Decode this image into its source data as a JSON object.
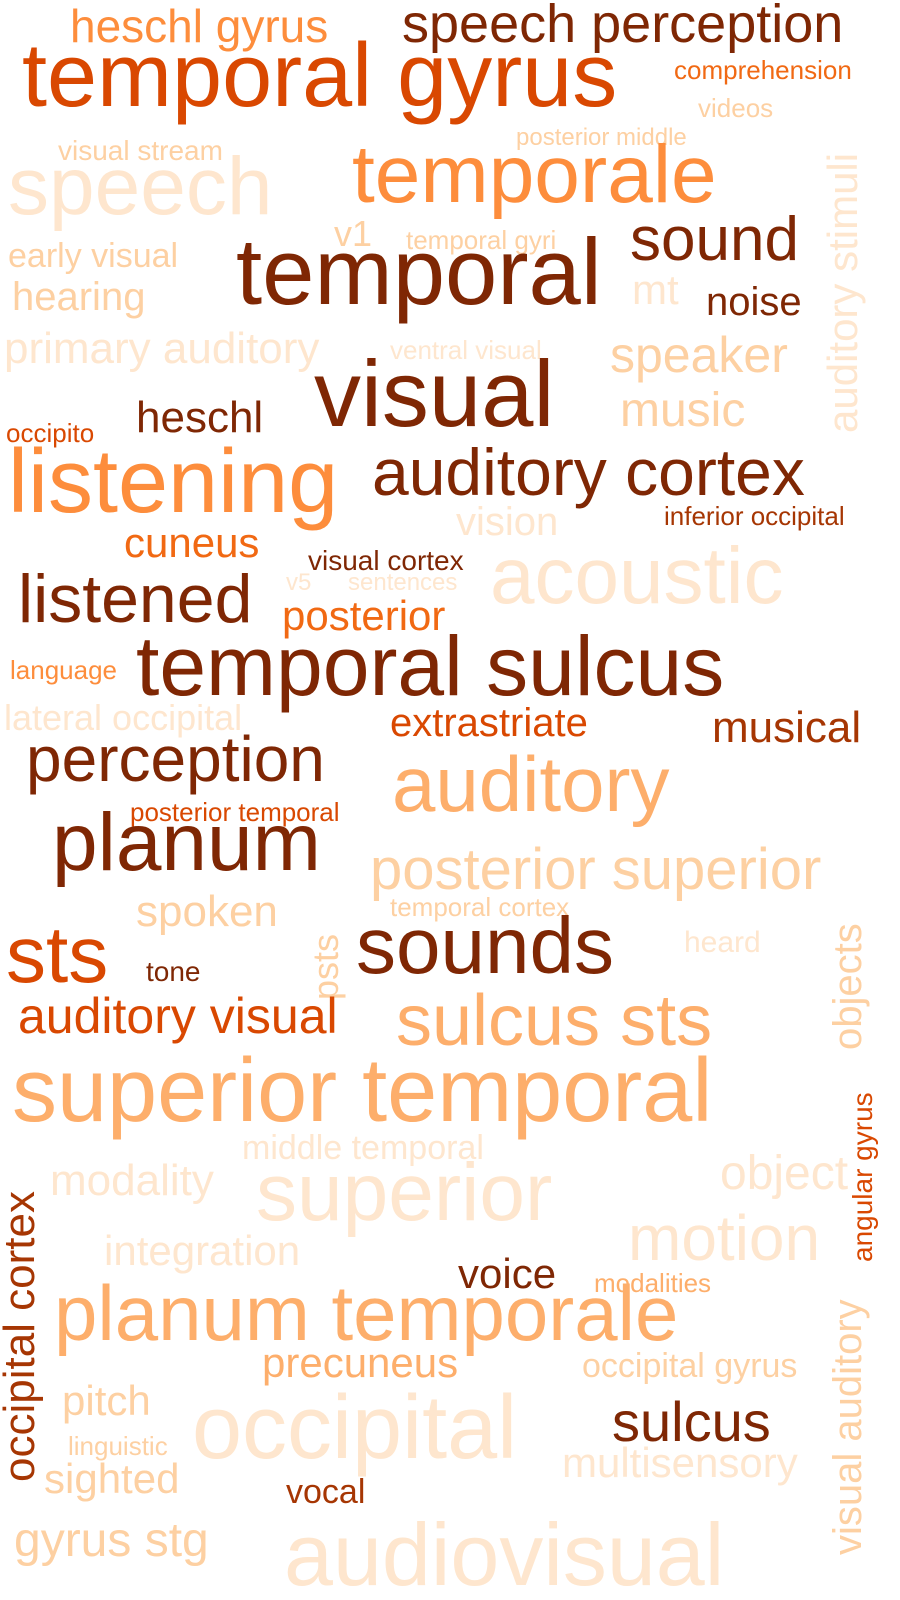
{
  "palette": {
    "dark": "#7f2704",
    "deep": "#a63603",
    "strong": "#d94801",
    "mid": "#f16913",
    "light": "#fd8d3c",
    "lighter": "#fdae6b",
    "pale": "#fdd0a2",
    "faint": "#fee6ce"
  },
  "words": [
    {
      "text": "heschl gyrus",
      "color": "light"
    },
    {
      "text": "speech perception",
      "color": "dark"
    },
    {
      "text": "temporal gyrus",
      "color": "strong"
    },
    {
      "text": "comprehension",
      "color": "mid"
    },
    {
      "text": "videos",
      "color": "pale"
    },
    {
      "text": "posterior middle",
      "color": "pale"
    },
    {
      "text": "visual stream",
      "color": "pale"
    },
    {
      "text": "speech",
      "color": "faint"
    },
    {
      "text": "temporale",
      "color": "light"
    },
    {
      "text": "v1",
      "color": "pale"
    },
    {
      "text": "temporal gyri",
      "color": "pale"
    },
    {
      "text": "sound",
      "color": "dark"
    },
    {
      "text": "early visual",
      "color": "pale"
    },
    {
      "text": "temporal",
      "color": "dark"
    },
    {
      "text": "hearing",
      "color": "pale"
    },
    {
      "text": "mt",
      "color": "faint"
    },
    {
      "text": "noise",
      "color": "dark"
    },
    {
      "text": "primary auditory",
      "color": "faint"
    },
    {
      "text": "ventral visual",
      "color": "faint"
    },
    {
      "text": "speaker",
      "color": "pale"
    },
    {
      "text": "auditory stimuli",
      "color": "faint"
    },
    {
      "text": "visual",
      "color": "dark"
    },
    {
      "text": "occipito",
      "color": "strong"
    },
    {
      "text": "heschl",
      "color": "dark"
    },
    {
      "text": "music",
      "color": "pale"
    },
    {
      "text": "listening",
      "color": "light"
    },
    {
      "text": "auditory cortex",
      "color": "dark"
    },
    {
      "text": "vision",
      "color": "faint"
    },
    {
      "text": "inferior occipital",
      "color": "deep"
    },
    {
      "text": "cuneus",
      "color": "mid"
    },
    {
      "text": "visual cortex",
      "color": "dark"
    },
    {
      "text": "acoustic",
      "color": "faint"
    },
    {
      "text": "v5",
      "color": "faint"
    },
    {
      "text": "sentences",
      "color": "faint"
    },
    {
      "text": "listened",
      "color": "dark"
    },
    {
      "text": "posterior",
      "color": "mid"
    },
    {
      "text": "language",
      "color": "light"
    },
    {
      "text": "temporal sulcus",
      "color": "dark"
    },
    {
      "text": "lateral occipital",
      "color": "faint"
    },
    {
      "text": "extrastriate",
      "color": "strong"
    },
    {
      "text": "musical",
      "color": "deep"
    },
    {
      "text": "perception",
      "color": "dark"
    },
    {
      "text": "auditory",
      "color": "lighter"
    },
    {
      "text": "posterior temporal",
      "color": "strong"
    },
    {
      "text": "planum",
      "color": "dark"
    },
    {
      "text": "posterior superior",
      "color": "pale"
    },
    {
      "text": "spoken",
      "color": "pale"
    },
    {
      "text": "temporal cortex",
      "color": "pale"
    },
    {
      "text": "psts",
      "color": "pale"
    },
    {
      "text": "heard",
      "color": "faint"
    },
    {
      "text": "objects",
      "color": "pale"
    },
    {
      "text": "sts",
      "color": "strong"
    },
    {
      "text": "tone",
      "color": "dark"
    },
    {
      "text": "sounds",
      "color": "dark"
    },
    {
      "text": "auditory visual",
      "color": "strong"
    },
    {
      "text": "sulcus sts",
      "color": "lighter"
    },
    {
      "text": "superior temporal",
      "color": "lighter"
    },
    {
      "text": "angular gyrus",
      "color": "strong"
    },
    {
      "text": "middle temporal",
      "color": "faint"
    },
    {
      "text": "modality",
      "color": "faint"
    },
    {
      "text": "superior",
      "color": "faint"
    },
    {
      "text": "object",
      "color": "faint"
    },
    {
      "text": "occipital cortex",
      "color": "deep"
    },
    {
      "text": "integration",
      "color": "faint"
    },
    {
      "text": "motion",
      "color": "faint"
    },
    {
      "text": "voice",
      "color": "dark"
    },
    {
      "text": "modalities",
      "color": "lighter"
    },
    {
      "text": "planum temporale",
      "color": "lighter"
    },
    {
      "text": "visual auditory",
      "color": "pale"
    },
    {
      "text": "precuneus",
      "color": "lighter"
    },
    {
      "text": "occipital gyrus",
      "color": "pale"
    },
    {
      "text": "pitch",
      "color": "pale"
    },
    {
      "text": "occipital",
      "color": "faint"
    },
    {
      "text": "sulcus",
      "color": "dark"
    },
    {
      "text": "linguistic",
      "color": "pale"
    },
    {
      "text": "multisensory",
      "color": "faint"
    },
    {
      "text": "sighted",
      "color": "pale"
    },
    {
      "text": "vocal",
      "color": "deep"
    },
    {
      "text": "gyrus stg",
      "color": "pale"
    },
    {
      "text": "audiovisual",
      "color": "faint"
    }
  ]
}
